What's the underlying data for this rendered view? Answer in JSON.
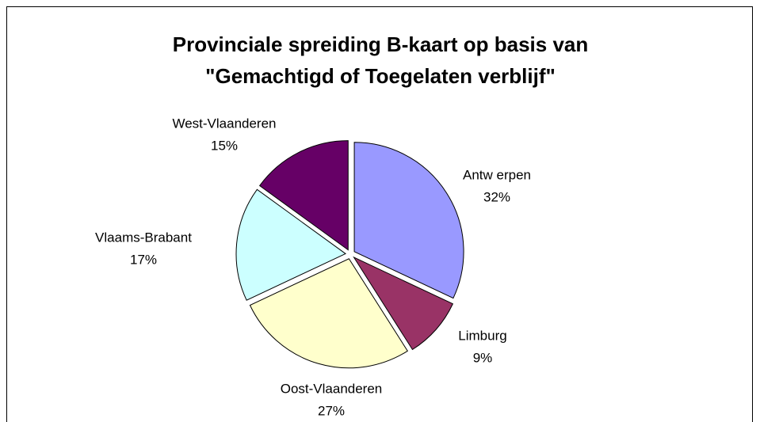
{
  "chart_data": {
    "type": "pie",
    "title": [
      "Provinciale spreiding B-kaart op basis van",
      "\"Gemachtigd of Toegelaten verblijf\""
    ],
    "categories": [
      "Antw erpen",
      "Limburg",
      "Oost-Vlaanderen",
      "Vlaams-Brabant",
      "West-Vlaanderen"
    ],
    "values": [
      32,
      9,
      27,
      17,
      15
    ],
    "value_labels": [
      "32%",
      "9%",
      "27%",
      "17%",
      "15%"
    ],
    "colors": [
      "#9999ff",
      "#993366",
      "#ffffcc",
      "#ccffff",
      "#660066"
    ]
  }
}
